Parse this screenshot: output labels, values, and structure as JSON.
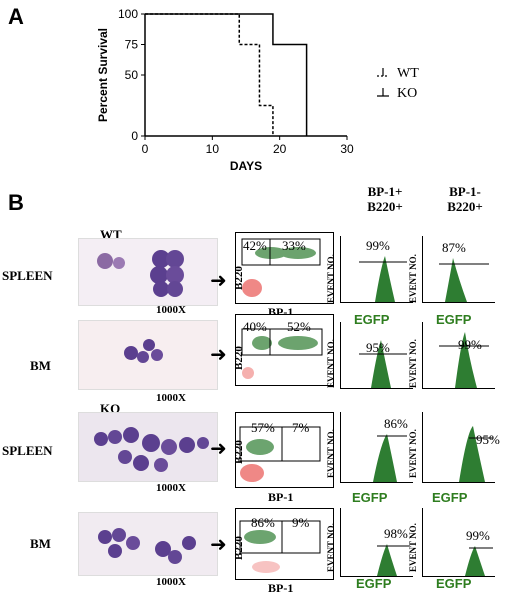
{
  "panel_a": {
    "letter": "A",
    "chart_data": {
      "type": "line",
      "xlabel": "DAYS",
      "ylabel": "Percent Survival",
      "xlim": [
        0,
        30
      ],
      "ylim": [
        0,
        100
      ],
      "xticks": [
        "0",
        "10",
        "20",
        "30"
      ],
      "yticks": [
        "0",
        "50",
        "75",
        "100"
      ],
      "legend_position": "right",
      "series": [
        {
          "name": "WT",
          "style": "dashed",
          "x": [
            0,
            14,
            14,
            17,
            17,
            19,
            19
          ],
          "y": [
            100,
            100,
            75,
            75,
            25,
            25,
            0
          ]
        },
        {
          "name": "KO",
          "style": "solid",
          "x": [
            0,
            19,
            19,
            24,
            24
          ],
          "y": [
            100,
            100,
            75,
            75,
            0
          ]
        }
      ]
    }
  },
  "panel_b": {
    "letter": "B",
    "col_headers": {
      "bp1_pos": [
        "BP-1+",
        "B220+"
      ],
      "bp1_neg": [
        "BP-1-",
        "B220+"
      ]
    },
    "rows": [
      {
        "group": "WT",
        "tissue": "SPLEEN",
        "mag": "1000X",
        "gate_left": "42%",
        "gate_right": "33%",
        "hist_pos": "99%",
        "hist_neg": "87%"
      },
      {
        "group": "",
        "tissue": "BM",
        "mag": "1000X",
        "gate_left": "40%",
        "gate_right": "52%",
        "hist_pos": "95%",
        "hist_neg": "99%"
      },
      {
        "group": "KO",
        "tissue": "SPLEEN",
        "mag": "1000X",
        "gate_left": "57%",
        "gate_right": "7%",
        "hist_pos": "86%",
        "hist_neg": "95%"
      },
      {
        "group": "",
        "tissue": "BM",
        "mag": "1000X",
        "gate_left": "86%",
        "gate_right": "9%",
        "hist_pos": "98%",
        "hist_neg": "99%"
      }
    ],
    "flow_x_label": "BP-1",
    "flow_y_label": "B220",
    "hist_x_label": "EGFP",
    "hist_y_label": "EVENT NO.",
    "colors": {
      "cells": "#5b3f8f",
      "green_dots": "#2e7d32",
      "red_dots": "#e53935",
      "egfp": "#2e7d1f"
    }
  }
}
